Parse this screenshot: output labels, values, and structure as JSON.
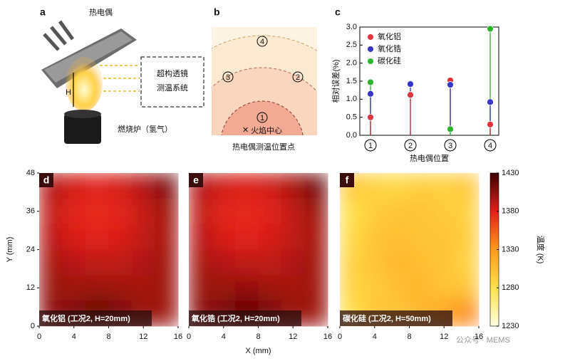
{
  "panel_a": {
    "label": "a",
    "thermocouple": "热电偶",
    "height": "H",
    "system": [
      "超构透镜",
      "测温系统"
    ],
    "burner": "燃烧炉（氢气）"
  },
  "panel_b": {
    "label": "b",
    "positions": [
      "1",
      "2",
      "3",
      "4"
    ],
    "flame_center": "火焰中心",
    "caption": "热电偶测温位置点"
  },
  "chart_data": [
    {
      "type": "stem",
      "panel_label": "c",
      "categories": [
        "1",
        "2",
        "3",
        "4"
      ],
      "x_label": "热电偶位置",
      "y_label": "相对误差(%)",
      "ylim": [
        0,
        3
      ],
      "yticks": [
        {
          "value": 0,
          "label": "0.0"
        },
        0.5,
        {
          "value": 1,
          "label": "1.0"
        },
        1.5,
        {
          "value": 2,
          "label": "2.0"
        },
        2.5,
        {
          "value": 3,
          "label": "3.0"
        }
      ],
      "legend": "upper-left",
      "series": [
        {
          "name": "氧化铝",
          "color": "#e0343f",
          "values": [
            0.5,
            1.12,
            1.52,
            0.3
          ]
        },
        {
          "name": "氧化锆",
          "color": "#3636c8",
          "values": [
            1.15,
            1.42,
            1.4,
            0.92
          ]
        },
        {
          "name": "碳化硅",
          "color": "#2cb52c",
          "values": [
            1.47,
            null,
            0.17,
            2.95
          ]
        }
      ]
    },
    {
      "type": "heatmap",
      "panel_label": "d",
      "caption": "氧化铝 (工况2, H=20mm)",
      "y_label": "Y (mm)",
      "xlim": [
        0,
        16
      ],
      "xticks": [
        0,
        4,
        8,
        12,
        16
      ],
      "ylim": [
        0,
        48
      ],
      "yticks": [
        0,
        12,
        24,
        36,
        48
      ],
      "clim": [
        1230,
        1430
      ],
      "z": [
        [
          1395,
          1385,
          1380,
          1385,
          1395,
          1412
        ],
        [
          1390,
          1378,
          1375,
          1378,
          1388,
          1400
        ],
        [
          1392,
          1382,
          1380,
          1382,
          1390,
          1398
        ],
        [
          1398,
          1392,
          1390,
          1390,
          1395,
          1400
        ],
        [
          1402,
          1400,
          1402,
          1400,
          1398,
          1400
        ],
        [
          1405,
          1410,
          1418,
          1412,
          1402,
          1400
        ]
      ]
    },
    {
      "type": "heatmap",
      "panel_label": "e",
      "caption": "氧化锆 (工况2, H=20mm)",
      "x_label": "X (mm)",
      "xlim": [
        0,
        16
      ],
      "xticks": [
        0,
        4,
        8,
        12,
        16
      ],
      "ylim": [
        0,
        48
      ],
      "clim": [
        1230,
        1430
      ],
      "z": [
        [
          1395,
          1385,
          1382,
          1386,
          1398,
          1415
        ],
        [
          1390,
          1378,
          1376,
          1380,
          1390,
          1402
        ],
        [
          1392,
          1382,
          1380,
          1383,
          1390,
          1398
        ],
        [
          1398,
          1393,
          1390,
          1390,
          1395,
          1400
        ],
        [
          1402,
          1402,
          1404,
          1400,
          1398,
          1400
        ],
        [
          1405,
          1412,
          1420,
          1412,
          1402,
          1400
        ]
      ]
    },
    {
      "type": "heatmap",
      "panel_label": "f",
      "caption": "碳化硅 (工况2, H=50mm)",
      "colorbar_label": "温度 (K)",
      "xlim": [
        0,
        16
      ],
      "xticks": [
        0,
        4,
        8,
        12,
        16
      ],
      "ylim": [
        0,
        48
      ],
      "clim": [
        1230,
        1430
      ],
      "cticks": [
        1230,
        1280,
        1330,
        1380,
        1430
      ],
      "z": [
        [
          1300,
          1290,
          1285,
          1295,
          1290,
          1300
        ],
        [
          1280,
          1295,
          1300,
          1300,
          1295,
          1290
        ],
        [
          1285,
          1300,
          1305,
          1300,
          1300,
          1295
        ],
        [
          1290,
          1300,
          1310,
          1305,
          1300,
          1290
        ],
        [
          1290,
          1295,
          1305,
          1310,
          1300,
          1300
        ],
        [
          1280,
          1300,
          1300,
          1310,
          1322,
          1338
        ]
      ]
    }
  ],
  "watermark": "公众号 · MEMS"
}
